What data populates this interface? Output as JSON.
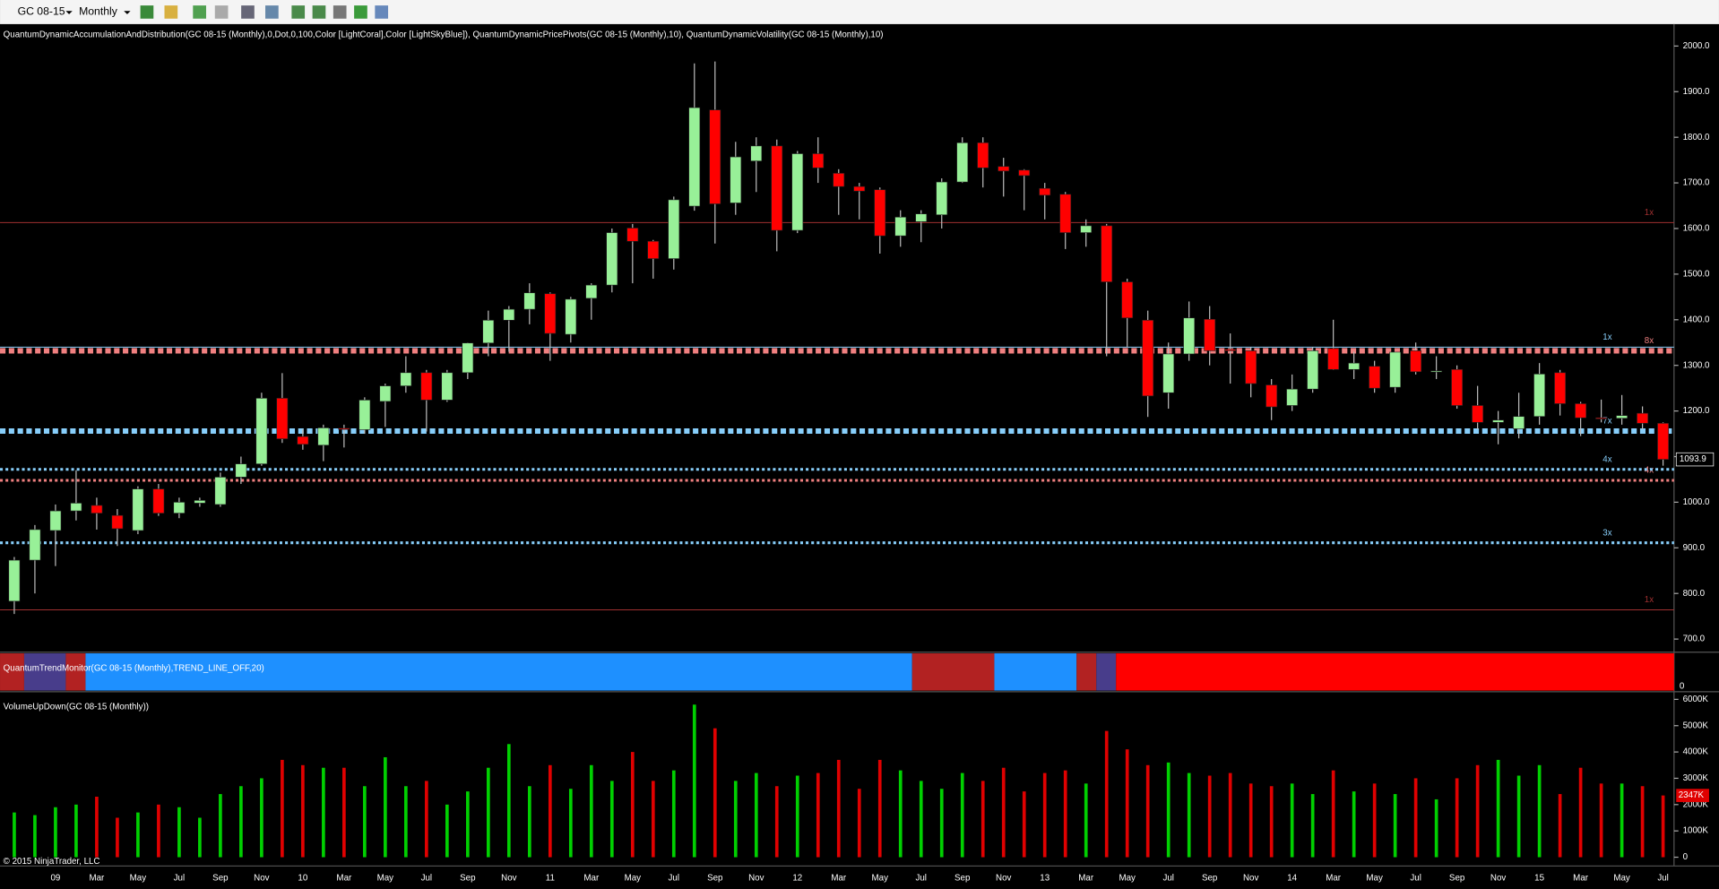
{
  "toolbar": {
    "instrument": "GC 08-15",
    "period": "Monthly"
  },
  "indicators": {
    "price": "QuantumDynamicAccumulationAndDistribution(GC 08-15 (Monthly),0,Dot,0,100,Color [LightCoral],Color [LightSkyBlue]), QuantumDynamicPricePivots(GC 08-15 (Monthly),10), QuantumDynamicVolatility(GC 08-15 (Monthly),10)",
    "trend": "QuantumTrendMonitor(GC 08-15 (Monthly),TREND_LINE_OFF,20)",
    "trend_axis": "0",
    "volume": "VolumeUpDown(GC 08-15 (Monthly))"
  },
  "copyright": "© 2015 NinjaTrader, LLC",
  "chart_data": [
    {
      "type": "candlestick",
      "up_color": "#98f098",
      "down_color": "#ff0000",
      "categories": [
        null,
        null,
        "09",
        null,
        "Mar",
        null,
        "May",
        null,
        "Jul",
        null,
        "Sep",
        null,
        "Nov",
        null,
        "10",
        null,
        "Mar",
        null,
        "May",
        null,
        "Jul",
        null,
        "Sep",
        null,
        "Nov",
        null,
        "11",
        null,
        "Mar",
        null,
        "May",
        null,
        "Jul",
        null,
        "Sep",
        null,
        "Nov",
        null,
        "12",
        null,
        "Mar",
        null,
        "May",
        null,
        "Jul",
        null,
        "Sep",
        null,
        "Nov",
        null,
        "13",
        null,
        "Mar",
        null,
        "May",
        null,
        "Jul",
        null,
        "Sep",
        null,
        "Nov",
        null,
        "14",
        null,
        "Mar",
        null,
        "May",
        null,
        "Jul",
        null,
        "Sep",
        null,
        "Nov",
        null,
        "15",
        null,
        "Mar",
        null,
        "May",
        null,
        "Jul"
      ],
      "open": [
        783,
        873,
        938,
        981,
        993,
        971,
        938,
        1029,
        976,
        998,
        995,
        1055,
        1084,
        1228,
        1144,
        1125,
        1162,
        1159,
        1221,
        1255,
        1284,
        1224,
        1284,
        1349,
        1399,
        1423,
        1457,
        1368,
        1447,
        1476,
        1601,
        1572,
        1534,
        1649,
        1860,
        1656,
        1748,
        1781,
        1596,
        1764,
        1721,
        1692,
        1685,
        1584,
        1615,
        1630,
        1702,
        1788,
        1736,
        1728,
        1688,
        1675,
        1591,
        1606,
        1483,
        1399,
        1240,
        1325,
        1401,
        1335,
        1332,
        1257,
        1212,
        1248,
        1337,
        1291,
        1298,
        1252,
        1332,
        1286,
        1291,
        1212,
        1175,
        1161,
        1188,
        1284,
        1216,
        1185,
        1184,
        1195,
        1173
      ],
      "high": [
        880,
        950,
        995,
        1070,
        1010,
        985,
        1035,
        1040,
        1010,
        1010,
        1065,
        1100,
        1240,
        1283,
        1160,
        1170,
        1170,
        1230,
        1260,
        1320,
        1290,
        1290,
        1350,
        1420,
        1430,
        1480,
        1460,
        1450,
        1480,
        1600,
        1610,
        1575,
        1670,
        1962,
        1966,
        1790,
        1800,
        1795,
        1770,
        1800,
        1730,
        1700,
        1690,
        1640,
        1640,
        1710,
        1800,
        1800,
        1755,
        1730,
        1700,
        1680,
        1620,
        1610,
        1490,
        1420,
        1350,
        1440,
        1430,
        1370,
        1340,
        1270,
        1280,
        1340,
        1400,
        1330,
        1310,
        1330,
        1350,
        1320,
        1300,
        1255,
        1200,
        1240,
        1305,
        1290,
        1220,
        1225,
        1235,
        1210,
        1175
      ],
      "low": [
        755,
        800,
        860,
        960,
        940,
        904,
        930,
        970,
        965,
        990,
        990,
        1040,
        1080,
        1130,
        1115,
        1090,
        1120,
        1150,
        1165,
        1240,
        1155,
        1220,
        1270,
        1320,
        1330,
        1390,
        1310,
        1350,
        1400,
        1460,
        1480,
        1490,
        1510,
        1639,
        1567,
        1630,
        1680,
        1550,
        1590,
        1700,
        1630,
        1620,
        1545,
        1560,
        1570,
        1600,
        1700,
        1690,
        1670,
        1640,
        1620,
        1555,
        1560,
        1320,
        1340,
        1187,
        1205,
        1310,
        1300,
        1260,
        1230,
        1180,
        1200,
        1240,
        1290,
        1270,
        1240,
        1240,
        1280,
        1270,
        1205,
        1160,
        1127,
        1140,
        1170,
        1190,
        1145,
        1175,
        1170,
        1160,
        1080
      ],
      "close": [
        873,
        940,
        981,
        998,
        976,
        942,
        1029,
        976,
        1000,
        1004,
        1055,
        1084,
        1228,
        1139,
        1127,
        1163,
        1160,
        1224,
        1255,
        1284,
        1224,
        1284,
        1349,
        1399,
        1423,
        1459,
        1370,
        1445,
        1476,
        1591,
        1572,
        1534,
        1663,
        1865,
        1654,
        1757,
        1781,
        1596,
        1764,
        1733,
        1692,
        1682,
        1584,
        1625,
        1632,
        1702,
        1788,
        1733,
        1726,
        1716,
        1673,
        1591,
        1606,
        1483,
        1404,
        1233,
        1325,
        1404,
        1332,
        1332,
        1260,
        1209,
        1248,
        1332,
        1291,
        1305,
        1250,
        1329,
        1286,
        1288,
        1212,
        1175,
        1180,
        1188,
        1281,
        1216,
        1185,
        1184,
        1190,
        1173,
        1093.9
      ],
      "ylim": [
        700,
        2000
      ],
      "yticks": [
        {
          "value": 700,
          "label": "700.0"
        },
        {
          "value": 800,
          "label": "800.0"
        },
        {
          "value": 900,
          "label": "900.0"
        },
        {
          "value": 1000,
          "label": "1000.0"
        },
        {
          "value": 1100,
          "label": "1100.0"
        },
        {
          "value": 1200,
          "label": "1200.0"
        },
        {
          "value": 1300,
          "label": "1300.0"
        },
        {
          "value": 1400,
          "label": "1400.0"
        },
        {
          "value": 1500,
          "label": "1500.0"
        },
        {
          "value": 1600,
          "label": "1600.0"
        },
        {
          "value": 1700,
          "label": "1700.0"
        },
        {
          "value": 1800,
          "label": "1800.0"
        },
        {
          "value": 1900,
          "label": "1900.0"
        },
        {
          "value": 2000,
          "label": "2000.0"
        }
      ],
      "distribution_levels": [
        {
          "value": 1613,
          "color": "#a03030",
          "style": "line",
          "label": "1x"
        },
        {
          "value": 1332,
          "color": "#f08080",
          "style": "dots",
          "label": "8x"
        },
        {
          "value": 1048,
          "color": "#f08080",
          "style": "fine-dots",
          "label": "4x"
        },
        {
          "value": 764,
          "color": "#a03030",
          "style": "line",
          "label": "1x"
        }
      ],
      "accumulation_levels": [
        {
          "value": 1340,
          "color": "#87cefa",
          "style": "line",
          "label": "1x"
        },
        {
          "value": 1156,
          "color": "#87cefa",
          "style": "dots",
          "label": "7x"
        },
        {
          "value": 1072,
          "color": "#87cefa",
          "style": "fine-dots",
          "label": "4x"
        },
        {
          "value": 911,
          "color": "#87cefa",
          "style": "fine-dots",
          "label": "3x"
        }
      ]
    },
    {
      "type": "bar",
      "up_color": "#00d000",
      "down_color": "#e00000",
      "values": [
        1700,
        1600,
        1900,
        2000,
        2300,
        1500,
        1700,
        2000,
        1900,
        1500,
        2400,
        2700,
        3000,
        3700,
        3500,
        3400,
        3400,
        2700,
        3800,
        2700,
        2900,
        2000,
        2500,
        3400,
        4300,
        2700,
        3500,
        2600,
        3500,
        2900,
        4000,
        2900,
        3300,
        5800,
        4900,
        2900,
        3200,
        2700,
        3100,
        3200,
        3700,
        2600,
        3700,
        3300,
        2900,
        2600,
        3200,
        2900,
        3400,
        2500,
        3200,
        3300,
        2800,
        4800,
        4100,
        3500,
        3600,
        3200,
        3100,
        3200,
        2800,
        2700,
        2800,
        2400,
        3300,
        2500,
        2800,
        2400,
        3000,
        2200,
        3000,
        3500,
        3700,
        3100,
        3500,
        2400,
        3400,
        2800,
        2800,
        2700,
        2347
      ],
      "last_label": "2347K",
      "ylim": [
        0,
        6000
      ],
      "yticks": [
        0,
        {
          "value": 1000,
          "label": "1000K"
        },
        {
          "value": 2000,
          "label": "2000K"
        },
        {
          "value": 3000,
          "label": "3000K"
        },
        {
          "value": 4000,
          "label": "4000K"
        },
        {
          "value": 5000,
          "label": "5000K"
        },
        {
          "value": 6000,
          "label": "6000K"
        }
      ]
    }
  ]
}
